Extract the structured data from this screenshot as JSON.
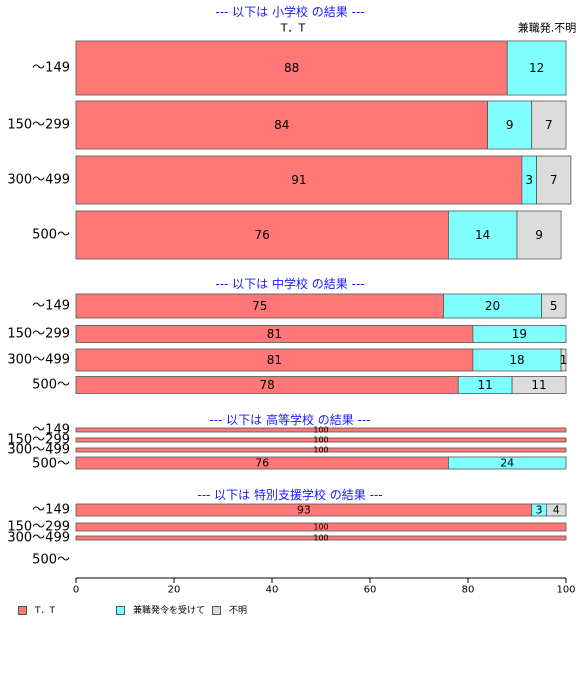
{
  "chart_data": {
    "type": "bar",
    "orientation": "horizontal",
    "stacked": true,
    "xlim": [
      0,
      100
    ],
    "x_ticks": [
      0,
      20,
      40,
      60,
      80,
      100
    ],
    "top_labels": {
      "tt": "T．T",
      "unknown_col": "兼職発.不明"
    },
    "colors": {
      "tt": "#ff7777",
      "kenshoku": "#7fffff",
      "fumei": "#dcdcdc"
    },
    "legend": [
      {
        "label": "T．T",
        "color": "#ff7777"
      },
      {
        "label": "兼職発令を受けて",
        "color": "#7fffff"
      },
      {
        "label": "不明",
        "color": "#dcdcdc"
      }
    ],
    "panels": [
      {
        "title": "--- 以下は 小学校 の結果 ---",
        "categories": [
          "〜149",
          "150〜299",
          "300〜499",
          "500〜"
        ],
        "series": [
          {
            "name": "T．T",
            "values": [
              88,
              84,
              91,
              76
            ]
          },
          {
            "name": "兼職発令を受けて",
            "values": [
              12,
              9,
              3,
              14
            ]
          },
          {
            "name": "不明",
            "values": [
              0,
              7,
              7,
              9
            ]
          }
        ]
      },
      {
        "title": "--- 以下は 中学校 の結果 ---",
        "categories": [
          "〜149",
          "150〜299",
          "300〜499",
          "500〜"
        ],
        "series": [
          {
            "name": "T．T",
            "values": [
              75,
              81,
              81,
              78
            ]
          },
          {
            "name": "兼職発令を受けて",
            "values": [
              20,
              19,
              18,
              11
            ]
          },
          {
            "name": "不明",
            "values": [
              5,
              0,
              1,
              11
            ]
          }
        ]
      },
      {
        "title": "--- 以下は 高等学校 の結果 ---",
        "categories": [
          "〜149",
          "150〜299",
          "300〜499",
          "500〜"
        ],
        "series": [
          {
            "name": "T．T",
            "values": [
              100,
              100,
              100,
              76
            ]
          },
          {
            "name": "兼職発令を受けて",
            "values": [
              0,
              0,
              0,
              24
            ]
          },
          {
            "name": "不明",
            "values": [
              0,
              0,
              0,
              0
            ]
          }
        ]
      },
      {
        "title": "--- 以下は 特別支援学校 の結果 ---",
        "categories": [
          "〜149",
          "150〜299",
          "300〜499",
          "500〜"
        ],
        "series": [
          {
            "name": "T．T",
            "values": [
              93,
              100,
              100,
              null
            ]
          },
          {
            "name": "兼職発令を受けて",
            "values": [
              3,
              0,
              0,
              null
            ]
          },
          {
            "name": "不明",
            "values": [
              4,
              0,
              0,
              null
            ]
          }
        ]
      }
    ]
  }
}
